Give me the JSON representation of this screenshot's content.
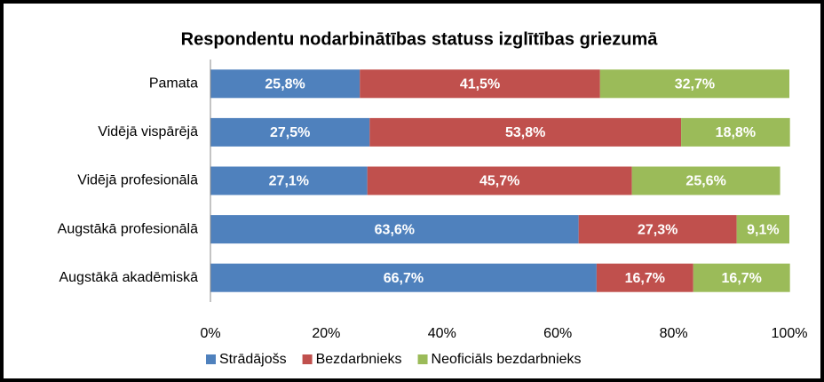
{
  "chart_data": {
    "type": "stacked_bar_horizontal",
    "title": "Respondentu nodarbinātības statuss izglītības griezumā",
    "categories": [
      "Pamata",
      "Vidējā vispārējā",
      "Vidējā profesionālā",
      "Augstākā profesionālā",
      "Augstākā akadēmiskā"
    ],
    "series": [
      {
        "name": "Strādājošs",
        "color": "#4f81bd",
        "values": [
          25.8,
          27.5,
          27.1,
          63.6,
          66.7
        ],
        "value_labels": [
          "25,8%",
          "27,5%",
          "27,1%",
          "63,6%",
          "66,7%"
        ]
      },
      {
        "name": "Bezdarbnieks",
        "color": "#c0504d",
        "values": [
          41.5,
          53.8,
          45.7,
          27.3,
          16.7
        ],
        "value_labels": [
          "41,5%",
          "53,8%",
          "45,7%",
          "27,3%",
          "16,7%"
        ]
      },
      {
        "name": "Neoficiāls bezdarbnieks",
        "color": "#9bbb59",
        "values": [
          32.7,
          18.8,
          25.6,
          9.1,
          16.7
        ],
        "value_labels": [
          "32,7%",
          "18,8%",
          "25,6%",
          "9,1%",
          "16,7%"
        ]
      }
    ],
    "xlim": [
      0,
      100
    ],
    "xticks": [
      {
        "value": 0,
        "label": "0%"
      },
      {
        "value": 20,
        "label": "20%"
      },
      {
        "value": 40,
        "label": "40%"
      },
      {
        "value": 60,
        "label": "60%"
      },
      {
        "value": 80,
        "label": "80%"
      },
      {
        "value": 100,
        "label": "100%"
      }
    ],
    "grid": false,
    "legend": "bottom"
  }
}
